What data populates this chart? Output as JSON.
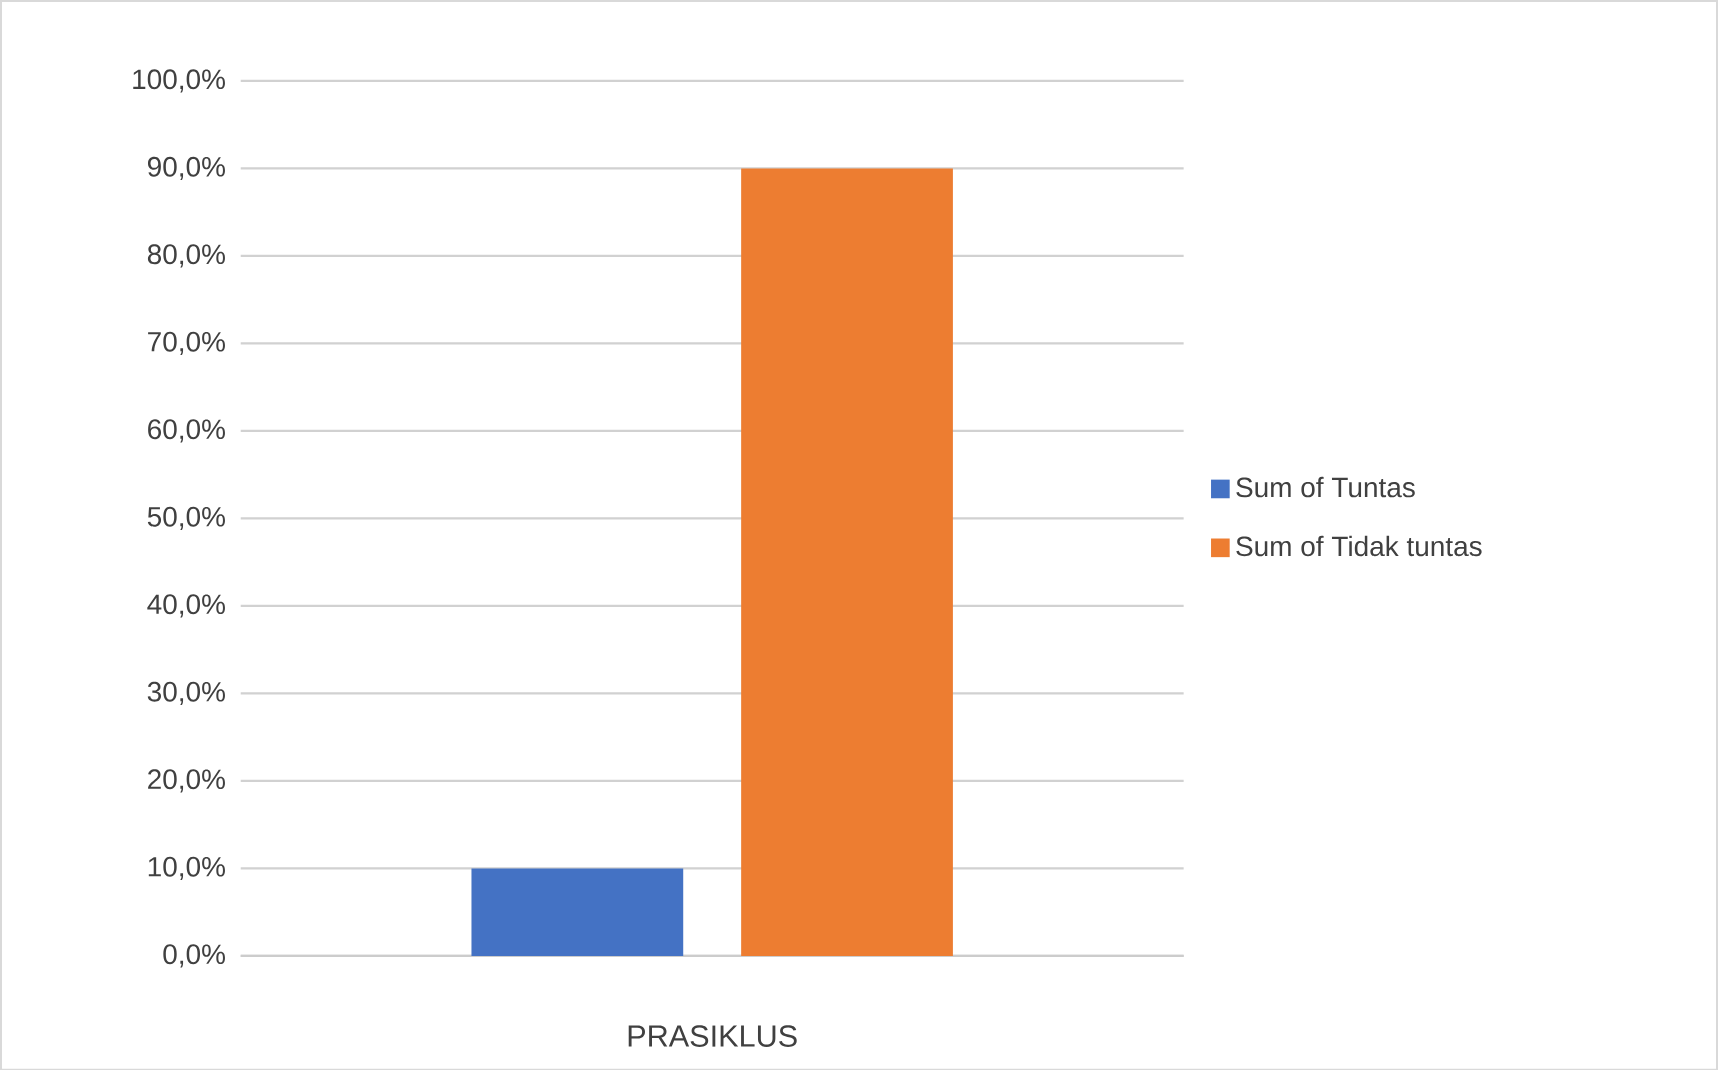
{
  "chart_data": {
    "type": "bar",
    "categories": [
      "PRASIKLUS"
    ],
    "series": [
      {
        "name": "Sum of Tuntas",
        "color": "#4472c4",
        "values": [
          10
        ]
      },
      {
        "name": "Sum of Tidak tuntas",
        "color": "#ed7d31",
        "values": [
          90
        ]
      }
    ],
    "ylim": [
      0,
      100
    ],
    "yticks": [
      {
        "value": 0,
        "label": "0,0%"
      },
      {
        "value": 10,
        "label": "10,0%"
      },
      {
        "value": 20,
        "label": "20,0%"
      },
      {
        "value": 30,
        "label": "30,0%"
      },
      {
        "value": 40,
        "label": "40,0%"
      },
      {
        "value": 50,
        "label": "50,0%"
      },
      {
        "value": 60,
        "label": "60,0%"
      },
      {
        "value": 70,
        "label": "70,0%"
      },
      {
        "value": 80,
        "label": "80,0%"
      },
      {
        "value": 90,
        "label": "90,0%"
      },
      {
        "value": 100,
        "label": "100,0%"
      }
    ],
    "grid": "y",
    "legend": "right"
  }
}
